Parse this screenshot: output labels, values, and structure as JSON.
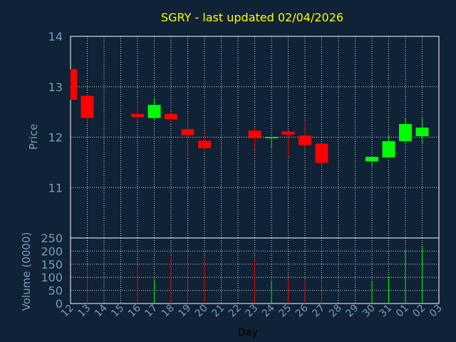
{
  "chart_data": {
    "type": "candlestick",
    "title": "SGRY - last updated 02/04/2026",
    "xlabel": "Day",
    "price_ylabel": "Price",
    "volume_ylabel": "Volume (0000)",
    "x_ticks": [
      "12",
      "13",
      "14",
      "15",
      "16",
      "17",
      "18",
      "19",
      "20",
      "21",
      "22",
      "23",
      "24",
      "25",
      "26",
      "27",
      "28",
      "29",
      "30",
      "31",
      "01",
      "02",
      "03"
    ],
    "price_yticks": [
      11,
      12,
      13,
      14
    ],
    "price_ylim": [
      10.0,
      14.0
    ],
    "volume_yticks": [
      0,
      50,
      100,
      150,
      200,
      250
    ],
    "volume_ylim": [
      0,
      250
    ],
    "grid": true,
    "colors": {
      "up": "#00ff00",
      "down": "#ff0000",
      "title": "#ffff00",
      "axis_text": "#7c9bb8",
      "grid": "#ffffff",
      "background": "#0f2236"
    },
    "candles": [
      {
        "day": "12",
        "open": 13.35,
        "high": 13.35,
        "low": 12.74,
        "close": 12.74,
        "volume": 0
      },
      {
        "day": "13",
        "open": 12.82,
        "high": 12.86,
        "low": 12.36,
        "close": 12.38,
        "volume": 135
      },
      {
        "day": "16",
        "open": 12.46,
        "high": 12.72,
        "low": 12.3,
        "close": 12.4,
        "volume": 148
      },
      {
        "day": "17",
        "open": 12.38,
        "high": 12.78,
        "low": 12.33,
        "close": 12.64,
        "volume": 90
      },
      {
        "day": "18",
        "open": 12.46,
        "high": 12.46,
        "low": 12.28,
        "close": 12.36,
        "volume": 178
      },
      {
        "day": "19",
        "open": 12.16,
        "high": 12.45,
        "low": 11.6,
        "close": 12.04,
        "volume": 195
      },
      {
        "day": "20",
        "open": 11.93,
        "high": 12.06,
        "low": 11.74,
        "close": 11.78,
        "volume": 170
      },
      {
        "day": "23",
        "open": 12.13,
        "high": 12.2,
        "low": 11.76,
        "close": 11.98,
        "volume": 167
      },
      {
        "day": "24",
        "open": 11.99,
        "high": 12.01,
        "low": 11.8,
        "close": 12.0,
        "volume": 88
      },
      {
        "day": "25",
        "open": 12.11,
        "high": 12.12,
        "low": 11.64,
        "close": 12.05,
        "volume": 98
      },
      {
        "day": "26",
        "open": 12.03,
        "high": 12.32,
        "low": 11.83,
        "close": 11.84,
        "volume": 92
      },
      {
        "day": "27",
        "open": 11.87,
        "high": 11.87,
        "low": 11.45,
        "close": 11.49,
        "volume": 80
      },
      {
        "day": "30",
        "open": 11.52,
        "high": 11.62,
        "low": 11.42,
        "close": 11.61,
        "volume": 85
      },
      {
        "day": "31",
        "open": 11.6,
        "high": 12.03,
        "low": 11.6,
        "close": 11.92,
        "volume": 105
      },
      {
        "day": "01",
        "open": 11.92,
        "high": 12.38,
        "low": 11.89,
        "close": 12.26,
        "volume": 205
      },
      {
        "day": "02",
        "open": 12.02,
        "high": 12.37,
        "low": 11.87,
        "close": 12.19,
        "volume": 220
      }
    ]
  }
}
